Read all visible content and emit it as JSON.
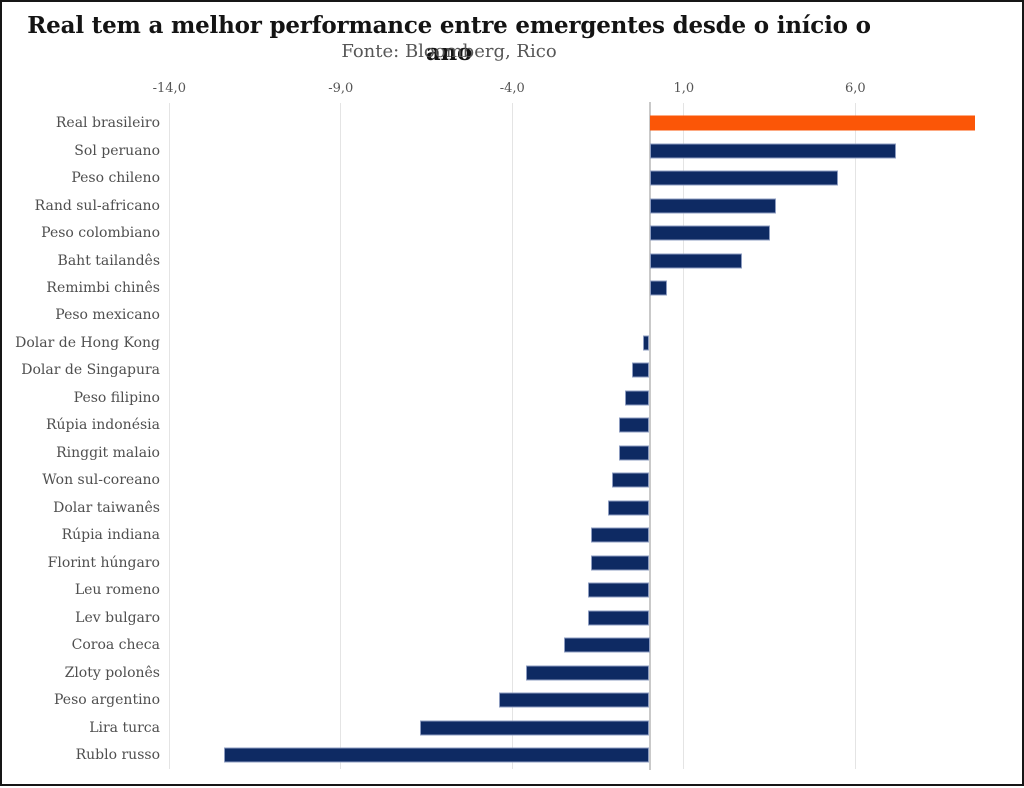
{
  "chart": {
    "title": "Real tem a melhor performance entre emergentes desde o início o ano",
    "subtitle": "Fonte: Bloomberg, Rico"
  },
  "colors": {
    "highlight": "#fb5607",
    "bar": "#0e2a63",
    "bar_border": "#8d9cc0",
    "grid": "#e4e4e4",
    "zero_line": "#c9c9c9",
    "title_text": "#141414",
    "label_text": "#4f4f4f",
    "tick_text": "#555555"
  },
  "chart_data": {
    "type": "bar",
    "orientation": "horizontal",
    "title": "Real tem a melhor performance entre emergentes desde o início o ano",
    "subtitle": "Fonte: Bloomberg, Rico",
    "categories": [
      "Real brasileiro",
      "Sol peruano",
      "Peso chileno",
      "Rand sul-africano",
      "Peso colombiano",
      "Baht tailandês",
      "Remimbi chinês",
      "Peso mexicano",
      "Dolar de Hong Kong",
      "Dolar de Singapura",
      "Peso filipino",
      "Rúpia indonésia",
      "Ringgit malaio",
      "Won sul-coreano",
      "Dolar taiwanês",
      "Rúpia indiana",
      "Florint húngaro",
      "Leu romeno",
      "Lev bulgaro",
      "Coroa checa",
      "Zloty polonês",
      "Peso argentino",
      "Lira turca",
      "Rublo russo"
    ],
    "values": [
      9.5,
      7.2,
      5.5,
      3.7,
      3.5,
      2.7,
      0.5,
      0.0,
      -0.2,
      -0.5,
      -0.7,
      -0.9,
      -0.9,
      -1.1,
      -1.2,
      -1.7,
      -1.7,
      -1.8,
      -1.8,
      -2.5,
      -3.6,
      -4.4,
      -6.7,
      -12.4
    ],
    "highlight_category": "Real brasileiro",
    "x_ticks": [
      {
        "value": -14,
        "label": "-14,0"
      },
      {
        "value": -9,
        "label": "-9,0"
      },
      {
        "value": -4,
        "label": "-4,0"
      },
      {
        "value": 1,
        "label": "1,0"
      },
      {
        "value": 6,
        "label": "6,0"
      }
    ],
    "xlim": [
      -14.6,
      10.4
    ],
    "grid": "vertical",
    "legend": "none",
    "xlabel": "",
    "ylabel": ""
  }
}
